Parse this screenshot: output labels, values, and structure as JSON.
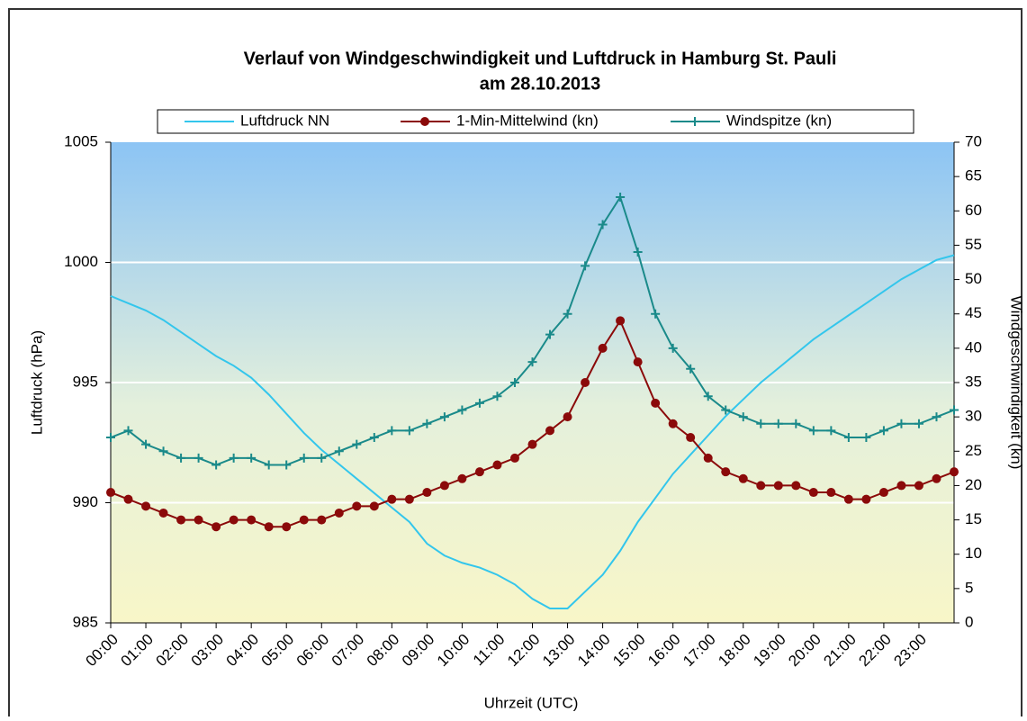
{
  "chart_data": {
    "type": "line",
    "title": "Verlauf von Windgeschwindigkeit und Luftdruck in Hamburg St. Pauli",
    "subtitle": "am 28.10.2013",
    "x_label": "Uhrzeit (UTC)",
    "y_label": "Luftdruck (hPa)",
    "y2_label": "Windgeschwindigkeit (kn)",
    "x": [
      0,
      0.5,
      1,
      1.5,
      2,
      2.5,
      3,
      3.5,
      4,
      4.5,
      5,
      5.5,
      6,
      6.5,
      7,
      7.5,
      8,
      8.5,
      9,
      9.5,
      10,
      10.5,
      11,
      11.5,
      12,
      12.5,
      13,
      13.5,
      14,
      14.5,
      15,
      15.5,
      16,
      16.5,
      17,
      17.5,
      18,
      18.5,
      19,
      19.5,
      20,
      20.5,
      21,
      21.5,
      22,
      22.5,
      23,
      23.5,
      24
    ],
    "series": [
      {
        "name": "Luftdruck NN",
        "color": "#33c6ec",
        "marker": "none",
        "values": [
          998.6,
          998.3,
          998.0,
          997.6,
          997.1,
          996.6,
          996.1,
          995.7,
          995.2,
          994.5,
          993.7,
          992.9,
          992.2,
          991.6,
          991.0,
          990.4,
          989.8,
          989.2,
          988.3,
          987.8,
          987.5,
          987.3,
          987.0,
          986.6,
          986.0,
          985.6,
          985.6,
          986.3,
          987.0,
          988.0,
          989.2,
          990.2,
          991.2,
          992.0,
          992.8,
          993.6,
          994.3,
          995.0,
          995.6,
          996.2,
          996.8,
          997.3,
          997.8,
          998.3,
          998.8,
          999.3,
          999.7,
          1000.1,
          1000.3
        ]
      },
      {
        "name": "1-Min-Mittelwind (kn)",
        "color": "#8b0a0a",
        "marker": "circle",
        "axis": "y2",
        "values": [
          19,
          18,
          17,
          16,
          15,
          15,
          14,
          15,
          15,
          14,
          14,
          15,
          15,
          16,
          17,
          17,
          18,
          18,
          19,
          20,
          21,
          22,
          23,
          24,
          26,
          28,
          30,
          35,
          40,
          44,
          38,
          32,
          29,
          27,
          24,
          22,
          21,
          20,
          20,
          20,
          19,
          19,
          18,
          18,
          19,
          20,
          20,
          21,
          22
        ]
      },
      {
        "name": "Windspitze (kn)",
        "color": "#1a8a8a",
        "marker": "plus",
        "axis": "y2",
        "values": [
          27,
          28,
          26,
          25,
          24,
          24,
          23,
          24,
          24,
          23,
          23,
          24,
          24,
          25,
          26,
          27,
          28,
          28,
          29,
          30,
          31,
          32,
          33,
          35,
          38,
          42,
          45,
          52,
          58,
          62,
          54,
          45,
          40,
          37,
          33,
          31,
          30,
          29,
          29,
          29,
          28,
          28,
          27,
          27,
          28,
          29,
          29,
          30,
          31
        ]
      }
    ],
    "xlim": [
      0,
      24
    ],
    "xticks": [
      {
        "value": 0,
        "label": "00:00"
      },
      {
        "value": 1,
        "label": "01:00"
      },
      {
        "value": 2,
        "label": "02:00"
      },
      {
        "value": 3,
        "label": "03:00"
      },
      {
        "value": 4,
        "label": "04:00"
      },
      {
        "value": 5,
        "label": "05:00"
      },
      {
        "value": 6,
        "label": "06:00"
      },
      {
        "value": 7,
        "label": "07:00"
      },
      {
        "value": 8,
        "label": "08:00"
      },
      {
        "value": 9,
        "label": "09:00"
      },
      {
        "value": 10,
        "label": "10:00"
      },
      {
        "value": 11,
        "label": "11:00"
      },
      {
        "value": 12,
        "label": "12:00"
      },
      {
        "value": 13,
        "label": "13:00"
      },
      {
        "value": 14,
        "label": "14:00"
      },
      {
        "value": 15,
        "label": "15:00"
      },
      {
        "value": 16,
        "label": "16:00"
      },
      {
        "value": 17,
        "label": "17:00"
      },
      {
        "value": 18,
        "label": "18:00"
      },
      {
        "value": 19,
        "label": "19:00"
      },
      {
        "value": 20,
        "label": "20:00"
      },
      {
        "value": 21,
        "label": "21:00"
      },
      {
        "value": 22,
        "label": "22:00"
      },
      {
        "value": 23,
        "label": "23:00"
      }
    ],
    "ylim": [
      985,
      1005
    ],
    "yticks": [
      985,
      990,
      995,
      1000,
      1005
    ],
    "y2lim": [
      0,
      70
    ],
    "y2ticks": [
      0,
      5,
      10,
      15,
      20,
      25,
      30,
      35,
      40,
      45,
      50,
      55,
      60,
      65,
      70
    ],
    "grid": true,
    "legend": "top"
  }
}
